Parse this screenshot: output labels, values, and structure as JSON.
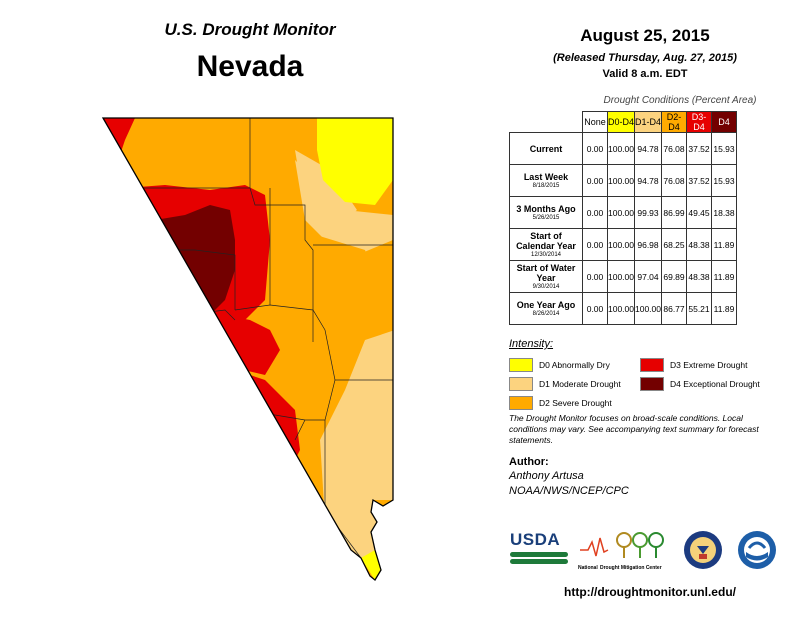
{
  "header": {
    "title": "U.S. Drought Monitor",
    "state": "Nevada",
    "date": "August 25, 2015",
    "released": "(Released Thursday, Aug. 27, 2015)",
    "valid": "Valid 8 a.m. EDT"
  },
  "table": {
    "caption": "Drought Conditions (Percent Area)",
    "columns": [
      "None",
      "D0-D4",
      "D1-D4",
      "D2-D4",
      "D3-D4",
      "D4"
    ],
    "column_colors": [
      "#ffffff",
      "#ffff00",
      "#fcd37f",
      "#ffaa00",
      "#e60000",
      "#730000"
    ],
    "rows": [
      {
        "label": "Current",
        "sub": "",
        "values": [
          "0.00",
          "100.00",
          "94.78",
          "76.08",
          "37.52",
          "15.93"
        ]
      },
      {
        "label": "Last Week",
        "sub": "8/18/2015",
        "values": [
          "0.00",
          "100.00",
          "94.78",
          "76.08",
          "37.52",
          "15.93"
        ]
      },
      {
        "label": "3 Months Ago",
        "sub": "5/26/2015",
        "values": [
          "0.00",
          "100.00",
          "99.93",
          "86.99",
          "49.45",
          "18.38"
        ]
      },
      {
        "label": "Start of Calendar Year",
        "sub": "12/30/2014",
        "values": [
          "0.00",
          "100.00",
          "96.98",
          "68.25",
          "48.38",
          "11.89"
        ]
      },
      {
        "label": "Start of Water Year",
        "sub": "9/30/2014",
        "values": [
          "0.00",
          "100.00",
          "97.04",
          "69.89",
          "48.38",
          "11.89"
        ]
      },
      {
        "label": "One Year Ago",
        "sub": "8/26/2014",
        "values": [
          "0.00",
          "100.00",
          "100.00",
          "86.77",
          "55.21",
          "11.89"
        ]
      }
    ]
  },
  "legend": {
    "heading": "Intensity:",
    "items": [
      {
        "label": "D0 Abnormally Dry",
        "color": "#ffff00"
      },
      {
        "label": "D1 Moderate Drought",
        "color": "#fcd37f"
      },
      {
        "label": "D2 Severe Drought",
        "color": "#ffaa00"
      },
      {
        "label": "D3 Extreme Drought",
        "color": "#e60000"
      },
      {
        "label": "D4 Exceptional Drought",
        "color": "#730000"
      }
    ]
  },
  "note": "The Drought Monitor focuses on broad-scale conditions. Local conditions may vary. See accompanying text summary for forecast statements.",
  "author": {
    "heading": "Author:",
    "name": "Anthony Artusa",
    "org": "NOAA/NWS/NCEP/CPC"
  },
  "logos": {
    "usda": "USDA",
    "ndmc_1": "National",
    "ndmc_2": "Drought Mitigation Center"
  },
  "url": "http://droughtmonitor.unl.edu/"
}
